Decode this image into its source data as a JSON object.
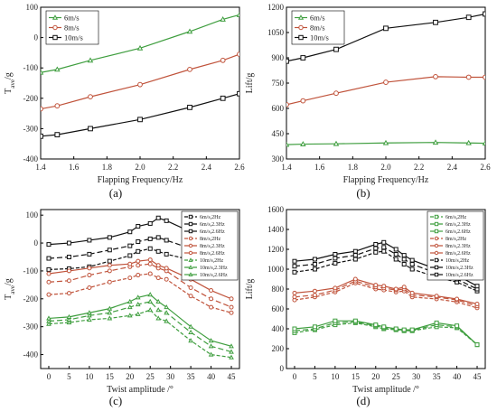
{
  "panels": [
    {
      "label": "(a)"
    },
    {
      "label": "(b)"
    },
    {
      "label": "(c)"
    },
    {
      "label": "(d)"
    }
  ],
  "chart_data": [
    {
      "type": "line",
      "xlabel": "Flapping Frequency/Hz",
      "ylabel_main": "T",
      "ylabel_sub": "ave",
      "ylabel_tail": "/g",
      "xlim": [
        1.4,
        2.6
      ],
      "ylim": [
        -400,
        100
      ],
      "xticks": [
        "1.4",
        "1.6",
        "1.8",
        "2.0",
        "2.2",
        "2.4",
        "2.6"
      ],
      "yticks": [
        "-400",
        "-300",
        "-200",
        "-100",
        "0",
        "100"
      ],
      "legend_position": "top-left",
      "x": [
        1.4,
        1.5,
        1.7,
        2.0,
        2.3,
        2.5,
        2.6
      ],
      "series": [
        {
          "name": "6m/s",
          "color": "#3f9e3f",
          "marker": "triangle",
          "values": [
            -115,
            -105,
            -75,
            -35,
            20,
            60,
            75
          ]
        },
        {
          "name": "8m/s",
          "color": "#c0533b",
          "marker": "circle",
          "values": [
            -235,
            -225,
            -195,
            -155,
            -105,
            -75,
            -55
          ]
        },
        {
          "name": "10m/s",
          "color": "#111111",
          "marker": "square",
          "values": [
            -325,
            -320,
            -300,
            -270,
            -230,
            -200,
            -185
          ]
        }
      ]
    },
    {
      "type": "line",
      "xlabel": "Flapping Frequency/Hz",
      "ylabel": "Lift/g",
      "xlim": [
        1.4,
        2.6
      ],
      "ylim": [
        300,
        1200
      ],
      "xticks": [
        "1.4",
        "1.6",
        "1.8",
        "2.0",
        "2.2",
        "2.4",
        "2.6"
      ],
      "yticks": [
        "300",
        "450",
        "600",
        "750",
        "900",
        "1050",
        "1200"
      ],
      "legend_position": "top-left",
      "x": [
        1.4,
        1.5,
        1.7,
        2.0,
        2.3,
        2.5,
        2.6
      ],
      "series": [
        {
          "name": "6m/s",
          "color": "#3f9e3f",
          "marker": "triangle",
          "values": [
            385,
            388,
            390,
            395,
            398,
            395,
            393
          ]
        },
        {
          "name": "8m/s",
          "color": "#c0533b",
          "marker": "circle",
          "values": [
            622,
            645,
            690,
            755,
            788,
            785,
            785
          ]
        },
        {
          "name": "10m/s",
          "color": "#111111",
          "marker": "square",
          "values": [
            880,
            900,
            950,
            1075,
            1110,
            1140,
            1160
          ]
        }
      ]
    },
    {
      "type": "line",
      "xlabel": "Twist amplitude /°",
      "ylabel_main": "T",
      "ylabel_sub": "ave",
      "ylabel_tail": "/g",
      "xlim": [
        -2,
        47
      ],
      "ylim": [
        -450,
        120
      ],
      "xticks": [
        "0",
        "5",
        "10",
        "15",
        "20",
        "25",
        "30",
        "35",
        "40",
        "45"
      ],
      "yticks": [
        "-400",
        "-300",
        "-200",
        "-100",
        "0",
        "100"
      ],
      "legend_position": "top-right",
      "x": [
        0,
        5,
        10,
        15,
        20,
        22,
        25,
        27,
        29,
        35,
        40,
        45
      ],
      "series": [
        {
          "name": "6m/s,2Hz",
          "color": "#111111",
          "marker": "square",
          "dash": "4,2",
          "values": [
            -95,
            -92,
            -85,
            -65,
            -45,
            -30,
            -20,
            -30,
            -40,
            -60,
            -90,
            -110
          ]
        },
        {
          "name": "6m/s,2.3Hz",
          "color": "#111111",
          "marker": "square",
          "dash": "6,3",
          "values": [
            -55,
            -50,
            -40,
            -25,
            -10,
            5,
            15,
            20,
            10,
            -20,
            -50,
            -55
          ]
        },
        {
          "name": "6m/s,2.6Hz",
          "color": "#111111",
          "marker": "square",
          "values": [
            -5,
            0,
            10,
            20,
            40,
            60,
            70,
            90,
            80,
            40,
            10,
            -10
          ]
        },
        {
          "name": "8m/s,2Hz",
          "color": "#c0533b",
          "marker": "circle",
          "dash": "4,2",
          "values": [
            -185,
            -180,
            -160,
            -140,
            -125,
            -115,
            -110,
            -125,
            -130,
            -190,
            -230,
            -250
          ]
        },
        {
          "name": "8m/s,2.3Hz",
          "color": "#c0533b",
          "marker": "circle",
          "dash": "6,3",
          "values": [
            -140,
            -135,
            -115,
            -100,
            -85,
            -80,
            -75,
            -90,
            -100,
            -160,
            -200,
            -230
          ]
        },
        {
          "name": "8m/s,2.6Hz",
          "color": "#c0533b",
          "marker": "circle",
          "values": [
            -110,
            -100,
            -90,
            -80,
            -75,
            -65,
            -60,
            -80,
            -90,
            -130,
            -170,
            -200
          ]
        },
        {
          "name": "10m/s,2Hz",
          "color": "#3f9e3f",
          "marker": "triangle",
          "dash": "4,2",
          "values": [
            -290,
            -285,
            -275,
            -270,
            -260,
            -255,
            -240,
            -270,
            -280,
            -350,
            -400,
            -410
          ]
        },
        {
          "name": "10m/s,2.3Hz",
          "color": "#3f9e3f",
          "marker": "triangle",
          "dash": "6,3",
          "values": [
            -280,
            -275,
            -260,
            -250,
            -230,
            -220,
            -210,
            -240,
            -250,
            -320,
            -370,
            -390
          ]
        },
        {
          "name": "10m/s,2.6Hz",
          "color": "#3f9e3f",
          "marker": "triangle",
          "values": [
            -270,
            -265,
            -250,
            -235,
            -210,
            -195,
            -185,
            -210,
            -230,
            -300,
            -350,
            -370
          ]
        }
      ]
    },
    {
      "type": "line",
      "xlabel": "Twist amplitude /°",
      "ylabel": "Lift/g",
      "xlim": [
        -2,
        47
      ],
      "ylim": [
        0,
        1600
      ],
      "xticks": [
        "0",
        "5",
        "10",
        "15",
        "20",
        "25",
        "30",
        "35",
        "40",
        "45"
      ],
      "yticks": [
        "0",
        "200",
        "400",
        "600",
        "800",
        "1000",
        "1200",
        "1400",
        "1600"
      ],
      "legend_position": "top-right",
      "x": [
        0,
        5,
        10,
        15,
        20,
        22,
        25,
        27,
        29,
        35,
        40,
        45
      ],
      "series": [
        {
          "name": "6m/s,2Hz",
          "color": "#3f9e3f",
          "marker": "square",
          "dash": "4,2",
          "values": [
            360,
            390,
            440,
            460,
            420,
            400,
            390,
            380,
            380,
            420,
            410,
            240
          ]
        },
        {
          "name": "6m/s,2.3Hz",
          "color": "#3f9e3f",
          "marker": "square",
          "dash": "6,3",
          "values": [
            380,
            400,
            460,
            470,
            430,
            410,
            395,
            385,
            385,
            440,
            420,
            240
          ]
        },
        {
          "name": "6m/s,2.6Hz",
          "color": "#3f9e3f",
          "marker": "square",
          "values": [
            400,
            420,
            480,
            480,
            440,
            420,
            400,
            390,
            390,
            460,
            430,
            240
          ]
        },
        {
          "name": "8m/s,2Hz",
          "color": "#c0533b",
          "marker": "circle",
          "dash": "4,2",
          "values": [
            690,
            720,
            770,
            860,
            800,
            790,
            770,
            780,
            720,
            700,
            670,
            610
          ]
        },
        {
          "name": "8m/s,2.3Hz",
          "color": "#c0533b",
          "marker": "circle",
          "dash": "6,3",
          "values": [
            720,
            740,
            790,
            880,
            820,
            810,
            790,
            800,
            740,
            720,
            690,
            630
          ]
        },
        {
          "name": "8m/s,2.6Hz",
          "color": "#c0533b",
          "marker": "circle",
          "values": [
            760,
            780,
            810,
            900,
            840,
            830,
            800,
            820,
            760,
            730,
            700,
            650
          ]
        },
        {
          "name": "10m/s,2Hz",
          "color": "#111111",
          "marker": "square",
          "dash": "4,2",
          "values": [
            970,
            1000,
            1060,
            1100,
            1170,
            1180,
            1100,
            1050,
            1000,
            920,
            870,
            780
          ]
        },
        {
          "name": "10m/s,2.3Hz",
          "color": "#111111",
          "marker": "square",
          "dash": "6,3",
          "values": [
            1030,
            1050,
            1110,
            1140,
            1210,
            1220,
            1150,
            1100,
            1050,
            960,
            900,
            800
          ]
        },
        {
          "name": "10m/s,2.6Hz",
          "color": "#111111",
          "marker": "square",
          "values": [
            1080,
            1100,
            1150,
            1180,
            1250,
            1270,
            1200,
            1140,
            1090,
            1000,
            940,
            830
          ]
        }
      ]
    }
  ]
}
